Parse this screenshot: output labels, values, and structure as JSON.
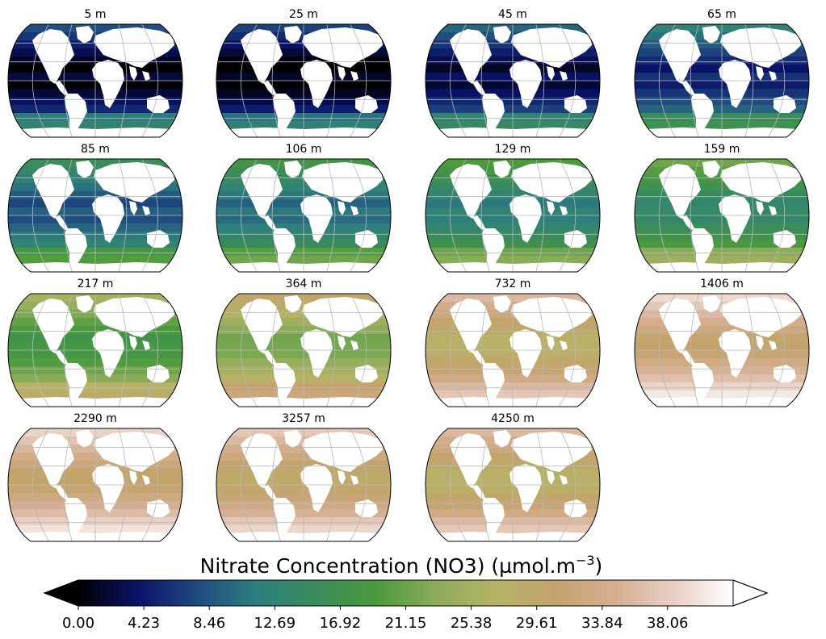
{
  "chart_data": {
    "type": "heatmap",
    "panels": [
      {
        "depth": "5 m",
        "level": 0.14
      },
      {
        "depth": "25 m",
        "level": 0.12
      },
      {
        "depth": "45 m",
        "level": 0.18
      },
      {
        "depth": "65 m",
        "level": 0.24
      },
      {
        "depth": "85 m",
        "level": 0.32
      },
      {
        "depth": "106 m",
        "level": 0.37
      },
      {
        "depth": "129 m",
        "level": 0.41
      },
      {
        "depth": "159 m",
        "level": 0.46
      },
      {
        "depth": "217 m",
        "level": 0.56
      },
      {
        "depth": "364 m",
        "level": 0.66
      },
      {
        "depth": "732 m",
        "level": 0.8
      },
      {
        "depth": "1406 m",
        "level": 0.88
      },
      {
        "depth": "2290 m",
        "level": 0.87
      },
      {
        "depth": "3257 m",
        "level": 0.84
      },
      {
        "depth": "4250 m",
        "level": 0.8
      }
    ],
    "colorbar": {
      "label_main": "Nitrate Concentration (NO3) (µmol.m",
      "label_exp": "−3",
      "label_close": ")",
      "min": 0.0,
      "max": 42.3,
      "extend": "both",
      "ticks": [
        "0.00",
        "4.23",
        "8.46",
        "12.69",
        "16.92",
        "21.15",
        "25.38",
        "29.61",
        "33.84",
        "38.06"
      ],
      "tick_values": [
        0.0,
        4.23,
        8.46,
        12.69,
        16.92,
        21.15,
        25.38,
        29.61,
        33.84,
        38.06
      ],
      "colormap": "gist_earth-like",
      "colors": [
        "#000000",
        "#0a1268",
        "#1f4a80",
        "#2d7f7f",
        "#3a8c5a",
        "#4a9a3c",
        "#8aac58",
        "#b6b366",
        "#c4a36c",
        "#d5ae90",
        "#e8cfc3",
        "#ffffff"
      ]
    }
  }
}
